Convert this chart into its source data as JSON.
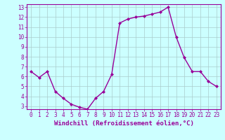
{
  "x": [
    0,
    1,
    2,
    3,
    4,
    5,
    6,
    7,
    8,
    9,
    10,
    11,
    12,
    13,
    14,
    15,
    16,
    17,
    18,
    19,
    20,
    21,
    22,
    23
  ],
  "y": [
    6.5,
    5.9,
    6.5,
    4.5,
    3.8,
    3.2,
    2.9,
    2.7,
    3.8,
    4.5,
    6.2,
    11.4,
    11.8,
    12.0,
    12.1,
    12.3,
    12.5,
    13.0,
    10.0,
    7.9,
    6.5,
    6.5,
    5.5,
    5.0
  ],
  "ylim": [
    2.7,
    13.3
  ],
  "xlim": [
    -0.5,
    23.5
  ],
  "yticks": [
    3,
    4,
    5,
    6,
    7,
    8,
    9,
    10,
    11,
    12,
    13
  ],
  "xticks": [
    0,
    1,
    2,
    3,
    4,
    5,
    6,
    7,
    8,
    9,
    10,
    11,
    12,
    13,
    14,
    15,
    16,
    17,
    18,
    19,
    20,
    21,
    22,
    23
  ],
  "line_color": "#990099",
  "marker": "D",
  "marker_size": 2.0,
  "bg_color": "#ccffff",
  "grid_color": "#aacccc",
  "xlabel": "Windchill (Refroidissement éolien,°C)",
  "xlabel_fontsize": 6.5,
  "tick_fontsize": 5.5,
  "line_width": 1.0,
  "spine_color": "#990099"
}
